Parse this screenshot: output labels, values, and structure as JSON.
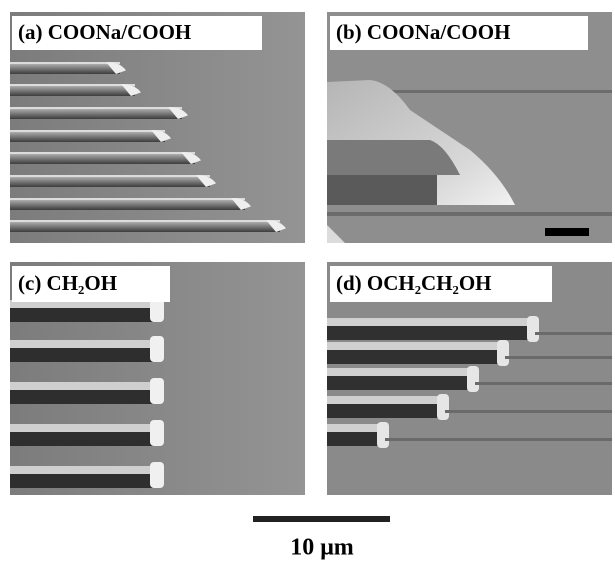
{
  "panels": [
    {
      "label": "(a) COONa/COOH"
    },
    {
      "label": "(b) COONa/COOH"
    },
    {
      "label": "(c) CH₂OH"
    },
    {
      "label": "(d) OCH₂CH₂OH"
    }
  ],
  "scale_bar": {
    "label": "10 μm"
  }
}
